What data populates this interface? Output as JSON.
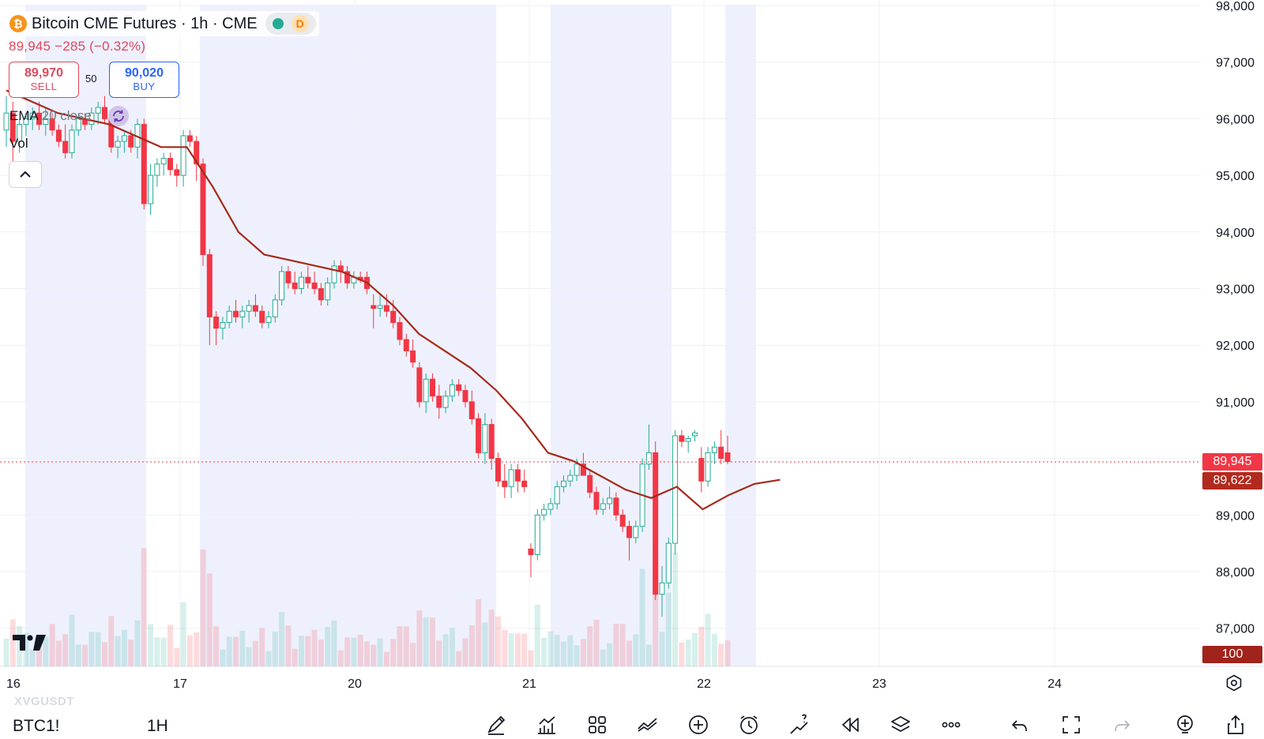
{
  "legend": {
    "symbol_title": "Bitcoin CME Futures · 1h · CME",
    "btc_glyph": "₿",
    "delay_badge": "D"
  },
  "quote": {
    "last": "89,945",
    "change": "−285",
    "change_pct": "(−0.32%)"
  },
  "trade": {
    "sell_price": "89,970",
    "sell_label": "SELL",
    "spread": "50",
    "buy_price": "90,020",
    "buy_label": "BUY"
  },
  "indicators": {
    "ema_name": "EMA",
    "ema_params": "20 close",
    "vol_name": "Vol"
  },
  "price_axis": {
    "ticks": [
      "98,000",
      "97,000",
      "96,000",
      "95,000",
      "94,000",
      "93,000",
      "92,000",
      "91,000",
      "89,000",
      "88,000",
      "87,000"
    ],
    "last_price_tag": "89,945",
    "ema_tag": "89,622",
    "volume_tag": "100"
  },
  "time_axis": {
    "ticks": [
      "16",
      "17",
      "20",
      "21",
      "22",
      "23",
      "24"
    ]
  },
  "watermark": "XVGUSDT",
  "bottom_bar": {
    "symbol": "BTC1!",
    "interval": "1H",
    "tools": [
      "brush-icon",
      "indicators-icon",
      "layout-grid-icon",
      "compare-icon",
      "add-icon",
      "alert-clock-icon",
      "ideas-icon",
      "replay-icon",
      "layers-icon",
      "more-icon",
      "undo-icon",
      "fullscreen-icon",
      "redo-icon",
      "add-light-icon",
      "share-icon"
    ]
  },
  "colors": {
    "up": "#22ab94",
    "down": "#f23645",
    "ema": "#a52a1b",
    "session_shade": "#eef1fd"
  },
  "chart_data": {
    "type": "candlestick",
    "title": "Bitcoin CME Futures · 1h · CME",
    "ylim": [
      86500,
      98000
    ],
    "x_ticks": [
      "16",
      "17",
      "20",
      "21",
      "22",
      "23",
      "24"
    ],
    "ohlc": [
      [
        95800,
        96400,
        95500,
        96100
      ],
      [
        96100,
        96300,
        95200,
        95600
      ],
      [
        95600,
        96000,
        95400,
        95900
      ],
      [
        95900,
        96100,
        95700,
        96000
      ],
      [
        96000,
        96200,
        95800,
        96100
      ],
      [
        96100,
        96300,
        95800,
        95900
      ],
      [
        95900,
        96200,
        95700,
        96000
      ],
      [
        96000,
        96100,
        95700,
        95800
      ],
      [
        95800,
        95900,
        95500,
        95600
      ],
      [
        95600,
        95900,
        95300,
        95400
      ],
      [
        95400,
        95900,
        95300,
        95800
      ],
      [
        95800,
        96100,
        95700,
        96000
      ],
      [
        96000,
        96100,
        95800,
        95900
      ],
      [
        95900,
        96200,
        95800,
        96100
      ],
      [
        96100,
        96300,
        95900,
        96200
      ],
      [
        96200,
        96400,
        95900,
        96000
      ],
      [
        96000,
        96100,
        95400,
        95500
      ],
      [
        95500,
        95700,
        95300,
        95600
      ],
      [
        95600,
        95800,
        95400,
        95700
      ],
      [
        95700,
        95800,
        95400,
        95500
      ],
      [
        95500,
        96000,
        95300,
        95900
      ],
      [
        95900,
        96000,
        94400,
        94500
      ],
      [
        94500,
        95200,
        94300,
        95000
      ],
      [
        95000,
        95300,
        94800,
        95200
      ],
      [
        95200,
        95400,
        95000,
        95300
      ],
      [
        95300,
        95400,
        95000,
        95100
      ],
      [
        95100,
        95200,
        94800,
        95000
      ],
      [
        95000,
        95800,
        94800,
        95700
      ],
      [
        95700,
        95800,
        95500,
        95600
      ],
      [
        95600,
        95700,
        94900,
        95200
      ],
      [
        95200,
        95300,
        93400,
        93600
      ],
      [
        93600,
        93700,
        92000,
        92500
      ],
      [
        92500,
        92600,
        92000,
        92300
      ],
      [
        92300,
        92500,
        92100,
        92400
      ],
      [
        92400,
        92700,
        92300,
        92600
      ],
      [
        92600,
        92800,
        92400,
        92500
      ],
      [
        92500,
        92700,
        92300,
        92600
      ],
      [
        92600,
        92800,
        92400,
        92700
      ],
      [
        92700,
        92900,
        92500,
        92600
      ],
      [
        92600,
        92700,
        92300,
        92400
      ],
      [
        92400,
        92600,
        92300,
        92500
      ],
      [
        92500,
        92900,
        92400,
        92800
      ],
      [
        92800,
        93400,
        92700,
        93300
      ],
      [
        93300,
        93400,
        93000,
        93100
      ],
      [
        93100,
        93300,
        92900,
        93000
      ],
      [
        93000,
        93300,
        92900,
        93200
      ],
      [
        93200,
        93400,
        93000,
        93100
      ],
      [
        93100,
        93300,
        92900,
        93000
      ],
      [
        93000,
        93100,
        92700,
        92800
      ],
      [
        92800,
        93200,
        92700,
        93100
      ],
      [
        93100,
        93500,
        93000,
        93400
      ],
      [
        93400,
        93500,
        93100,
        93300
      ],
      [
        93300,
        93400,
        93000,
        93100
      ],
      [
        93100,
        93300,
        93000,
        93200
      ],
      [
        93200,
        93300,
        93100,
        93150
      ],
      [
        93200,
        93300,
        92900,
        93000
      ],
      [
        92700,
        92900,
        92300,
        92650
      ],
      [
        92650,
        92900,
        92500,
        92700
      ],
      [
        92700,
        92900,
        92500,
        92600
      ],
      [
        92600,
        92800,
        92300,
        92400
      ],
      [
        92400,
        92500,
        92000,
        92100
      ],
      [
        92100,
        92200,
        91800,
        91900
      ],
      [
        91900,
        92100,
        91600,
        91700
      ],
      [
        91600,
        91700,
        90900,
        91000
      ],
      [
        91000,
        91500,
        90800,
        91400
      ],
      [
        91400,
        91500,
        91000,
        91100
      ],
      [
        91100,
        91300,
        90700,
        90900
      ],
      [
        90900,
        91200,
        90800,
        91100
      ],
      [
        91100,
        91400,
        91000,
        91300
      ],
      [
        91300,
        91400,
        91100,
        91200
      ],
      [
        91200,
        91300,
        90900,
        91000
      ],
      [
        91000,
        91200,
        90600,
        90700
      ],
      [
        90700,
        90800,
        90000,
        90100
      ],
      [
        90100,
        90800,
        89900,
        90600
      ],
      [
        90600,
        90700,
        89800,
        90000
      ],
      [
        90000,
        90100,
        89500,
        89600
      ],
      [
        89600,
        89900,
        89300,
        89500
      ],
      [
        89500,
        89900,
        89300,
        89800
      ],
      [
        89800,
        89900,
        89400,
        89600
      ],
      [
        89600,
        89800,
        89400,
        89500
      ],
      [
        88400,
        88500,
        87900,
        88300
      ],
      [
        88300,
        89100,
        88200,
        89000
      ],
      [
        89000,
        89200,
        88900,
        89100
      ],
      [
        89100,
        89300,
        89000,
        89200
      ],
      [
        89200,
        89600,
        89100,
        89500
      ],
      [
        89500,
        89700,
        89400,
        89600
      ],
      [
        89600,
        89800,
        89500,
        89700
      ],
      [
        89700,
        90000,
        89600,
        89900
      ],
      [
        89900,
        90100,
        89800,
        89700
      ],
      [
        89700,
        89800,
        89300,
        89400
      ],
      [
        89400,
        89500,
        89000,
        89100
      ],
      [
        89100,
        89300,
        89000,
        89200
      ],
      [
        89200,
        89500,
        89100,
        89300
      ],
      [
        89300,
        89400,
        88900,
        89000
      ],
      [
        89000,
        89100,
        88700,
        88800
      ],
      [
        88800,
        88900,
        88200,
        88600
      ],
      [
        88600,
        88900,
        88500,
        88800
      ],
      [
        88800,
        90000,
        88700,
        89900
      ],
      [
        89900,
        90600,
        89800,
        90100
      ],
      [
        90100,
        90300,
        87500,
        87600
      ],
      [
        87600,
        88100,
        87200,
        87800
      ],
      [
        87800,
        88600,
        87700,
        88500
      ],
      [
        88500,
        90500,
        88300,
        90400
      ],
      [
        90400,
        90500,
        90200,
        90300
      ],
      [
        90300,
        90400,
        90100,
        90350
      ],
      [
        90400,
        90500,
        90300,
        90450
      ],
      [
        90000,
        90200,
        89400,
        89600
      ],
      [
        89600,
        90200,
        89500,
        90100
      ],
      [
        90100,
        90300,
        89900,
        90200
      ],
      [
        90200,
        90500,
        89900,
        90000
      ],
      [
        90100,
        90400,
        89900,
        89945
      ]
    ],
    "ema20": [
      96500,
      96300,
      96100,
      96000,
      95900,
      95700,
      95500,
      95500,
      94800,
      94000,
      93600,
      93500,
      93400,
      93300,
      93100,
      92700,
      92200,
      91900,
      91600,
      91200,
      90700,
      90100,
      89950,
      89700,
      89450,
      89300,
      89500,
      89100,
      89350,
      89550,
      89622
    ],
    "volume": {
      "ylim": [
        0,
        100
      ],
      "last_tag": "100"
    }
  }
}
